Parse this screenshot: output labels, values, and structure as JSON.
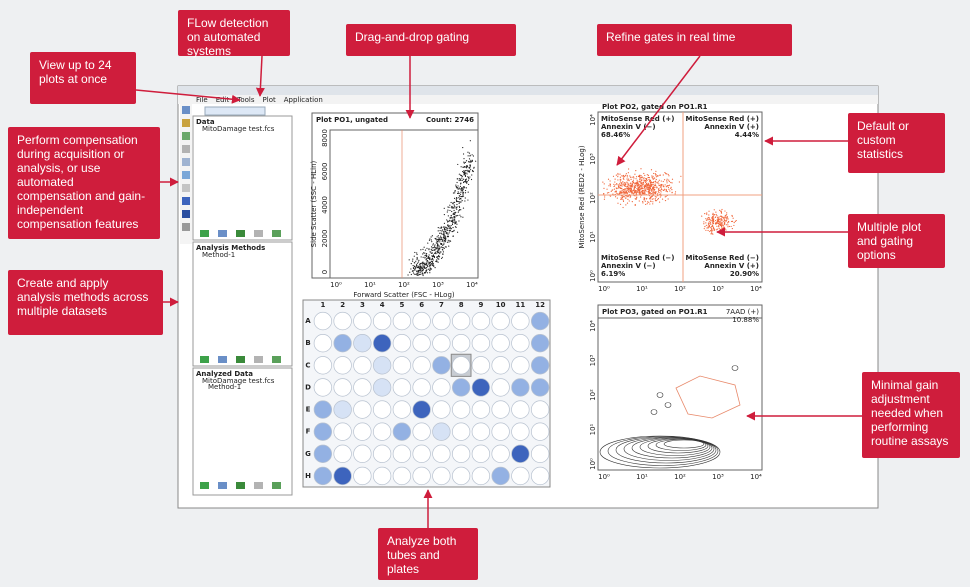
{
  "menu": [
    "File",
    "Edit",
    "Tools",
    "Plot",
    "Application"
  ],
  "panels": [
    {
      "title": "Data",
      "items": [
        "MitoDamage test.fcs"
      ]
    },
    {
      "title": "Analysis Methods",
      "items": [
        "Method-1"
      ]
    },
    {
      "title": "Analyzed Data",
      "items": [
        "MitoDamage test.fcs",
        "Method-1"
      ]
    }
  ],
  "plots": [
    {
      "title": "Plot PO1, ungated",
      "count": "Count: 2746",
      "x_label": "Forward Scatter (FSC - HLog)",
      "y_label": "Side Scatter (SSC - HLin)",
      "x_ticks": [
        "10⁰",
        "10¹",
        "10²",
        "10³",
        "10⁴"
      ],
      "y_ticks": [
        "0",
        "2000",
        "4000",
        "6000",
        "8000"
      ]
    },
    {
      "title": "Plot PO2, gated on PO1.R1",
      "y_label": "MitoSense Red (RED2 - HLog)",
      "x_ticks": [
        "10⁰",
        "10¹",
        "10²",
        "10³",
        "10⁴"
      ],
      "y_ticks": [
        "10⁰",
        "10¹",
        "10²",
        "10³",
        "10⁴"
      ],
      "quadrants": [
        {
          "lines": [
            "MitoSense Red (+)",
            "Annexin V (−)"
          ],
          "stat": "68.46%"
        },
        {
          "lines": [
            "MitoSense Red (+)",
            "Annexin V (+)"
          ],
          "stat": "4.44%"
        },
        {
          "lines": [
            "MitoSense Red (−)",
            "Annexin V (−)"
          ],
          "stat": "6.19%"
        },
        {
          "lines": [
            "MitoSense Red (−)",
            "Annexin V (+)"
          ],
          "stat": "20.90%"
        }
      ]
    },
    {
      "title": "Plot PO3, gated on PO1.R1",
      "stat_lines": [
        "7AAD (+)",
        "10.88%"
      ],
      "x_ticks": [
        "10⁰",
        "10¹",
        "10²",
        "10³",
        "10⁴"
      ],
      "y_ticks": [
        "10⁰",
        "10¹",
        "10²",
        "10³",
        "10⁴"
      ]
    }
  ],
  "plate": {
    "columns": [
      "1",
      "2",
      "3",
      "4",
      "5",
      "6",
      "7",
      "8",
      "9",
      "10",
      "11",
      "12"
    ],
    "rows": [
      "A",
      "B",
      "C",
      "D",
      "E",
      "F",
      "G",
      "H"
    ],
    "intensity_colors": [
      "#ffffff",
      "#d6e2f5",
      "#93b1e3",
      "#3d64bd"
    ],
    "wells": [
      [
        0,
        0,
        0,
        0,
        0,
        0,
        0,
        0,
        0,
        0,
        0,
        2
      ],
      [
        0,
        2,
        1,
        3,
        0,
        0,
        0,
        0,
        0,
        0,
        0,
        2
      ],
      [
        0,
        0,
        0,
        1,
        0,
        0,
        2,
        0,
        0,
        0,
        0,
        2
      ],
      [
        0,
        0,
        0,
        1,
        0,
        0,
        0,
        2,
        3,
        0,
        2,
        2
      ],
      [
        2,
        1,
        0,
        0,
        0,
        3,
        0,
        0,
        0,
        0,
        0,
        0
      ],
      [
        2,
        0,
        0,
        0,
        2,
        0,
        1,
        0,
        0,
        0,
        0,
        0
      ],
      [
        2,
        0,
        0,
        0,
        0,
        0,
        0,
        0,
        0,
        0,
        3,
        0
      ],
      [
        2,
        3,
        0,
        0,
        0,
        0,
        0,
        0,
        0,
        2,
        0,
        0
      ]
    ]
  },
  "callouts": [
    {
      "text": "FLow detection on automated systems"
    },
    {
      "text": "Drag-and-drop gating"
    },
    {
      "text": "Refine gates in real time"
    },
    {
      "text": "View up to 24 plots at once"
    },
    {
      "text": "Perform compensation during acquisition or analysis, or use automated compensation and gain-independent compensation features"
    },
    {
      "text": "Create and apply analysis methods across multiple datasets"
    },
    {
      "text": "Default or custom statistics"
    },
    {
      "text": "Multiple plot and gating options"
    },
    {
      "text": "Minimal gain adjustment needed when performing routine assays"
    },
    {
      "text": "Analyze both tubes and plates"
    }
  ]
}
